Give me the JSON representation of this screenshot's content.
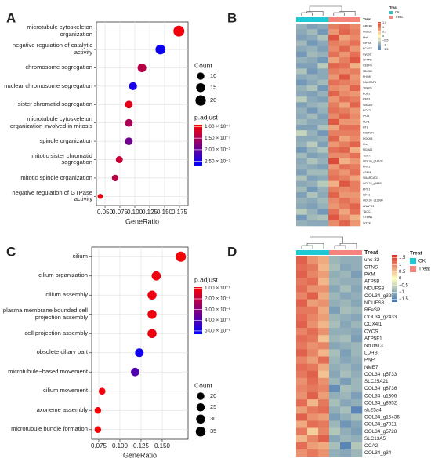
{
  "chart_data": [
    {
      "label": "A",
      "type": "dot",
      "xlabel": "GeneRatio",
      "categories": [
        "microtubule cytoskeleton organization",
        "negative regulation of catalytic activity",
        "chromosome segregation",
        "nuclear chromosome segregation",
        "sister chromatid segregation",
        "microtubule cytoskeleton organization involved in mitosis",
        "spindle organization",
        "mitotic sister chromatid segregation",
        "mitotic spindle organization",
        "negative regulation of GTPase activity"
      ],
      "values": [
        0.174,
        0.143,
        0.112,
        0.097,
        0.09,
        0.09,
        0.09,
        0.074,
        0.067,
        0.042
      ],
      "count": [
        22,
        18,
        14,
        12,
        11,
        11,
        11,
        9,
        8,
        5
      ],
      "p_adjust": [
        0.001,
        0.0026,
        0.0014,
        0.0025,
        0.0011,
        0.0015,
        0.0019,
        0.0013,
        0.0014,
        0.001
      ],
      "xlim": [
        0.0355,
        0.1895
      ],
      "xticks": [
        {
          "value": 0.05,
          "label": "0.050"
        },
        {
          "value": 0.075,
          "label": "0.075"
        },
        {
          "value": 0.1,
          "label": "0.100"
        },
        {
          "value": 0.125,
          "label": "0.125"
        },
        {
          "value": 0.15,
          "label": "0.150"
        },
        {
          "value": 0.175,
          "label": "0.175"
        }
      ],
      "grid": true,
      "size_title": "Count",
      "size_ticks": [
        10,
        15,
        20
      ],
      "color_title": "p.adjust",
      "colors": [
        "#ff0000",
        "#0000ff"
      ],
      "clim": [
        0.00092,
        0.00268
      ],
      "cticks": [
        {
          "value": 0.001,
          "label": "1.00 × 10⁻³"
        },
        {
          "value": 0.0015,
          "label": "1.50 × 10⁻³"
        },
        {
          "value": 0.002,
          "label": "2.00 × 10⁻³"
        },
        {
          "value": 0.0025,
          "label": "2.50 × 10⁻³"
        }
      ]
    },
    {
      "label": "B",
      "type": "heatmap",
      "annotation_title": "Treat",
      "rows": [
        "GREB1",
        "INSIG1",
        "Hnf",
        "INFHA",
        "BCAS3",
        "CycB3",
        "SFTPB",
        "CEBPA",
        "NDC80",
        "FHOM",
        "RACGAP1",
        "TRAP4",
        "BUB1",
        "RMF1",
        "SMAD9",
        "RCC2",
        "IPO3",
        "PLK1",
        "DTL",
        "RICTOR",
        "DOCK8",
        "Cnn",
        "NCOA2",
        "TEKT1",
        "OOL34_g14102",
        "PRC1",
        "ASPM",
        "SMARCAD1",
        "OOL34_g9889",
        "EPC1",
        "KIF11",
        "OOL34_g12990",
        "ANAPC1",
        "TACC1",
        "STMN1",
        "SOX4"
      ],
      "series": [
        {
          "name": "CK",
          "color": "#1fc8d3",
          "values": [
            [
              -0.9,
              -1.1,
              -1.0
            ],
            [
              -1.0,
              -0.8,
              -1.2
            ],
            [
              -1.1,
              -1.0,
              -0.7
            ],
            [
              -0.8,
              -1.2,
              -1.0
            ],
            [
              -1.0,
              -0.9,
              -1.1
            ],
            [
              -1.2,
              -0.8,
              -0.9
            ],
            [
              -0.9,
              -1.0,
              -1.2
            ],
            [
              -1.1,
              -1.1,
              -0.6
            ],
            [
              -0.7,
              -1.2,
              -1.0
            ],
            [
              -1.0,
              -0.9,
              -1.0
            ],
            [
              -1.2,
              -1.0,
              -0.8
            ],
            [
              -0.9,
              -0.7,
              -1.2
            ],
            [
              -1.0,
              -1.1,
              -0.9
            ],
            [
              -0.6,
              -1.0,
              -1.1
            ],
            [
              -1.1,
              -0.9,
              -0.8
            ],
            [
              -0.9,
              -1.2,
              -0.9
            ],
            [
              -1.0,
              -0.8,
              -1.1
            ],
            [
              -0.8,
              -1.0,
              -1.0
            ],
            [
              -1.1,
              -1.1,
              -0.7
            ],
            [
              -0.5,
              -0.9,
              -1.2
            ],
            [
              -1.0,
              -1.0,
              -0.9
            ],
            [
              -0.9,
              -0.6,
              -1.1
            ],
            [
              -1.2,
              -0.9,
              -0.7
            ],
            [
              -0.8,
              -1.1,
              -1.0
            ],
            [
              -1.0,
              -0.7,
              -0.9
            ],
            [
              -0.9,
              -1.0,
              -1.1
            ],
            [
              -1.1,
              -0.8,
              -0.8
            ],
            [
              -0.7,
              -1.1,
              -1.0
            ],
            [
              -1.0,
              -0.9,
              -0.6
            ],
            [
              -0.8,
              -1.2,
              -0.9
            ],
            [
              -1.1,
              -0.7,
              -1.0
            ],
            [
              -0.9,
              -1.0,
              -0.8
            ],
            [
              -1.0,
              -1.1,
              -0.9
            ],
            [
              -0.6,
              -0.9,
              -1.2
            ],
            [
              -1.2,
              -0.8,
              -0.7
            ],
            [
              -0.9,
              -1.0,
              -1.0
            ]
          ]
        },
        {
          "name": "Treat",
          "color": "#f4847c",
          "values": [
            [
              1.0,
              1.1,
              0.9
            ],
            [
              0.8,
              1.2,
              1.0
            ],
            [
              1.3,
              0.7,
              0.9
            ],
            [
              1.0,
              0.9,
              1.1
            ],
            [
              0.9,
              1.2,
              0.8
            ],
            [
              1.1,
              0.8,
              1.1
            ],
            [
              0.7,
              1.0,
              1.3
            ],
            [
              1.2,
              1.1,
              0.6
            ],
            [
              1.0,
              0.9,
              1.0
            ],
            [
              0.8,
              1.3,
              0.8
            ],
            [
              1.1,
              1.0,
              0.9
            ],
            [
              0.9,
              0.8,
              1.2
            ],
            [
              1.2,
              0.9,
              0.8
            ],
            [
              0.8,
              1.1,
              1.0
            ],
            [
              1.0,
              0.7,
              1.2
            ],
            [
              1.1,
              1.0,
              0.8
            ],
            [
              0.9,
              1.2,
              0.9
            ],
            [
              1.3,
              0.8,
              0.8
            ],
            [
              0.7,
              1.1,
              1.1
            ],
            [
              1.0,
              1.0,
              1.0
            ],
            [
              1.2,
              0.7,
              0.9
            ],
            [
              0.8,
              1.0,
              1.2
            ],
            [
              1.1,
              1.2,
              0.6
            ],
            [
              0.9,
              0.9,
              1.1
            ],
            [
              1.4,
              0.6,
              0.8
            ],
            [
              0.8,
              1.1,
              1.0
            ],
            [
              1.0,
              0.8,
              1.1
            ],
            [
              1.1,
              1.0,
              0.7
            ],
            [
              0.6,
              1.3,
              1.0
            ],
            [
              1.0,
              0.9,
              1.0
            ],
            [
              1.2,
              0.8,
              0.8
            ],
            [
              0.9,
              1.1,
              0.9
            ],
            [
              0.8,
              1.0,
              1.2
            ],
            [
              1.1,
              0.7,
              1.1
            ],
            [
              1.3,
              0.9,
              0.6
            ],
            [
              0.9,
              1.2,
              0.8
            ]
          ]
        }
      ],
      "colors": [
        "#4575b4",
        "#ffffbf",
        "#d73027"
      ],
      "clim": [
        -1.6,
        1.6
      ],
      "cticks": [
        1.5,
        1,
        0.5,
        0,
        {
          "value": -0.5,
          "label": "−0.5"
        },
        {
          "value": -1,
          "label": "−1"
        },
        {
          "value": -1.5,
          "label": "−1.5"
        }
      ]
    },
    {
      "label": "C",
      "type": "dot",
      "xlabel": "GeneRatio",
      "categories": [
        "cilium",
        "cilium organization",
        "cilium assembly",
        "plasma membrane bounded cell projection assembly",
        "cell projection assembly",
        "obsolete ciliary part",
        "microtubule−based movement",
        "cilium movement",
        "axoneme assembly",
        "microtubule bundle formation"
      ],
      "values": [
        0.172,
        0.143,
        0.138,
        0.138,
        0.138,
        0.123,
        0.118,
        0.079,
        0.074,
        0.074
      ],
      "count": [
        38,
        31,
        30,
        30,
        30,
        27,
        26,
        17,
        16,
        16
      ],
      "p_adjust": [
        1e-06,
        1.2e-06,
        1.2e-06,
        1.2e-06,
        1.2e-06,
        5e-06,
        3.9e-06,
        1.1e-06,
        1e-06,
        1e-06
      ],
      "xlim": [
        0.0667,
        0.1806
      ],
      "xticks": [
        {
          "value": 0.075,
          "label": "0.075"
        },
        {
          "value": 0.1,
          "label": "0.100"
        },
        {
          "value": 0.125,
          "label": "0.125"
        },
        {
          "value": 0.15,
          "label": "0.150"
        }
      ],
      "grid": true,
      "size_title": "Count",
      "size_ticks": [
        20,
        25,
        30,
        35
      ],
      "color_title": "p.adjust",
      "colors": [
        "#ff0000",
        "#0000ff"
      ],
      "clim": [
        9e-07,
        5.3e-06
      ],
      "cticks": [
        {
          "value": 1e-06,
          "label": "1.00 × 10⁻⁶"
        },
        {
          "value": 2e-06,
          "label": "2.00 × 10⁻⁶"
        },
        {
          "value": 3e-06,
          "label": "3.00 × 10⁻⁶"
        },
        {
          "value": 4e-06,
          "label": "4.00 × 10⁻⁶"
        },
        {
          "value": 5e-06,
          "label": "5.00 × 10⁻⁶"
        }
      ]
    },
    {
      "label": "D",
      "type": "heatmap",
      "annotation_title": "Treat",
      "rows": [
        "unc-32",
        "CTNS",
        "PKM",
        "ATP5B",
        "NDUFS8",
        "OOL34_g3254",
        "NDUFS3",
        "RFeSP",
        "OOL34_g2433",
        "COX4I1",
        "CYCS",
        "ATP5F1",
        "Ndufa13",
        "LDHB",
        "PNP",
        "NME7",
        "OOL34_g5733",
        "SLC25A21",
        "OOL34_g8736",
        "OOL34_g1306",
        "OOL34_g8952",
        "slc25a4",
        "OOL34_g16436",
        "OOL34_g7011",
        "OOL34_g5728",
        "SLC13A5",
        "OCA2",
        "OOL34_g34"
      ],
      "series": [
        {
          "name": "CK",
          "color": "#1fc8d3",
          "values": [
            [
              1.3,
              0.9,
              0.7
            ],
            [
              1.2,
              1.1,
              0.6
            ],
            [
              1.3,
              1.0,
              0.8
            ],
            [
              1.1,
              1.2,
              0.6
            ],
            [
              1.2,
              0.9,
              0.9
            ],
            [
              1.0,
              1.3,
              0.7
            ],
            [
              1.3,
              0.8,
              0.9
            ],
            [
              1.1,
              1.1,
              0.7
            ],
            [
              1.2,
              1.0,
              0.8
            ],
            [
              1.3,
              0.9,
              0.6
            ],
            [
              1.0,
              1.2,
              0.9
            ],
            [
              1.2,
              1.1,
              0.5
            ],
            [
              1.1,
              0.9,
              1.0
            ],
            [
              1.3,
              1.0,
              0.6
            ],
            [
              1.0,
              0.8,
              1.2
            ],
            [
              1.2,
              1.1,
              0.7
            ],
            [
              1.1,
              1.3,
              0.5
            ],
            [
              0.9,
              1.2,
              0.9
            ],
            [
              1.0,
              1.1,
              1.0
            ],
            [
              0.9,
              1.3,
              0.8
            ],
            [
              1.2,
              0.6,
              1.1
            ],
            [
              0.8,
              1.1,
              1.2
            ],
            [
              1.3,
              0.9,
              0.8
            ],
            [
              0.7,
              1.2,
              1.1
            ],
            [
              1.1,
              0.4,
              1.0
            ],
            [
              0.6,
              1.0,
              1.3
            ],
            [
              1.2,
              0.8,
              0.7
            ],
            [
              0.9,
              1.1,
              0.9
            ]
          ]
        },
        {
          "name": "Treat",
          "color": "#f4847c",
          "values": [
            [
              -0.9,
              -1.0,
              -1.0
            ],
            [
              -0.8,
              -1.1,
              -1.0
            ],
            [
              -1.0,
              -0.9,
              -1.2
            ],
            [
              -0.9,
              -1.0,
              -1.0
            ],
            [
              -1.1,
              -0.8,
              -1.1
            ],
            [
              -0.9,
              -1.1,
              -1.0
            ],
            [
              -1.0,
              -0.9,
              -1.1
            ],
            [
              -1.2,
              -0.8,
              -0.9
            ],
            [
              -0.9,
              -1.0,
              -1.1
            ],
            [
              -0.8,
              -1.1,
              -0.9
            ],
            [
              -1.0,
              -1.0,
              -1.1
            ],
            [
              -0.9,
              -0.8,
              -1.2
            ],
            [
              -1.1,
              -1.0,
              -0.9
            ],
            [
              -0.8,
              -1.2,
              -0.9
            ],
            [
              -0.9,
              -1.1,
              -1.0
            ],
            [
              -1.0,
              -0.9,
              -1.1
            ],
            [
              -1.1,
              -0.8,
              -1.0
            ],
            [
              -0.9,
              -1.2,
              -0.9
            ],
            [
              -1.4,
              -0.8,
              -0.9
            ],
            [
              -1.0,
              -0.9,
              -1.2
            ],
            [
              -0.8,
              -1.1,
              -1.0
            ],
            [
              -1.0,
              -0.8,
              -1.5
            ],
            [
              -1.2,
              -1.0,
              -0.8
            ],
            [
              -0.9,
              -1.3,
              -1.1
            ],
            [
              -0.7,
              -1.0,
              -1.2
            ],
            [
              -1.1,
              -0.9,
              -1.0
            ],
            [
              -0.8,
              -1.5,
              -0.7
            ],
            [
              -1.0,
              -1.1,
              -0.9
            ]
          ]
        }
      ],
      "colors": [
        "#4575b4",
        "#ffffbf",
        "#d73027"
      ],
      "clim": [
        -1.7,
        1.7
      ],
      "cticks": [
        1.5,
        1,
        0.5,
        0,
        {
          "value": -0.5,
          "label": "−0.5"
        },
        {
          "value": -1,
          "label": "−1"
        },
        {
          "value": -1.5,
          "label": "−1.5"
        }
      ]
    }
  ]
}
